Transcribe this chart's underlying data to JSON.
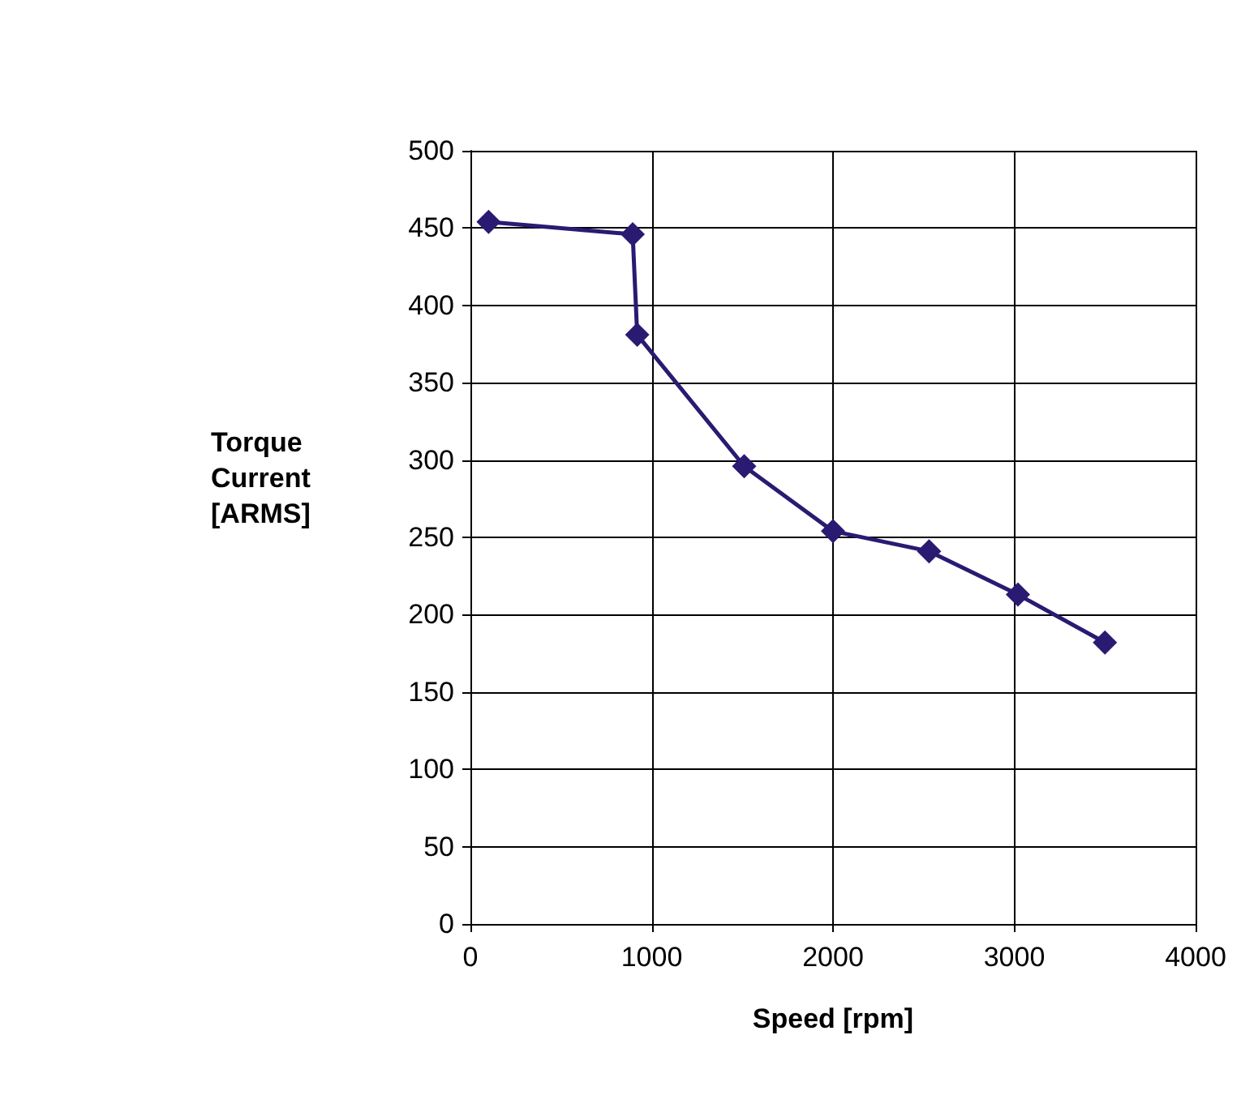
{
  "chart_data": {
    "type": "line",
    "xlabel": "Speed [rpm]",
    "ylabel": "Torque Current [ARMS]",
    "x": [
      100,
      895,
      920,
      1510,
      2000,
      2530,
      3020,
      3500
    ],
    "series": [
      {
        "color": "#2b1a72",
        "values": [
          454,
          446,
          381,
          296,
          254,
          241,
          213,
          182
        ]
      }
    ],
    "xlim": [
      0,
      4000
    ],
    "xticks": [
      0,
      1000,
      2000,
      3000,
      4000
    ],
    "ylim": [
      0,
      500
    ],
    "yticks": [
      0,
      50,
      100,
      150,
      200,
      250,
      300,
      350,
      400,
      450,
      500
    ],
    "grid": true,
    "marker": "diamond",
    "line_style": "solid"
  }
}
